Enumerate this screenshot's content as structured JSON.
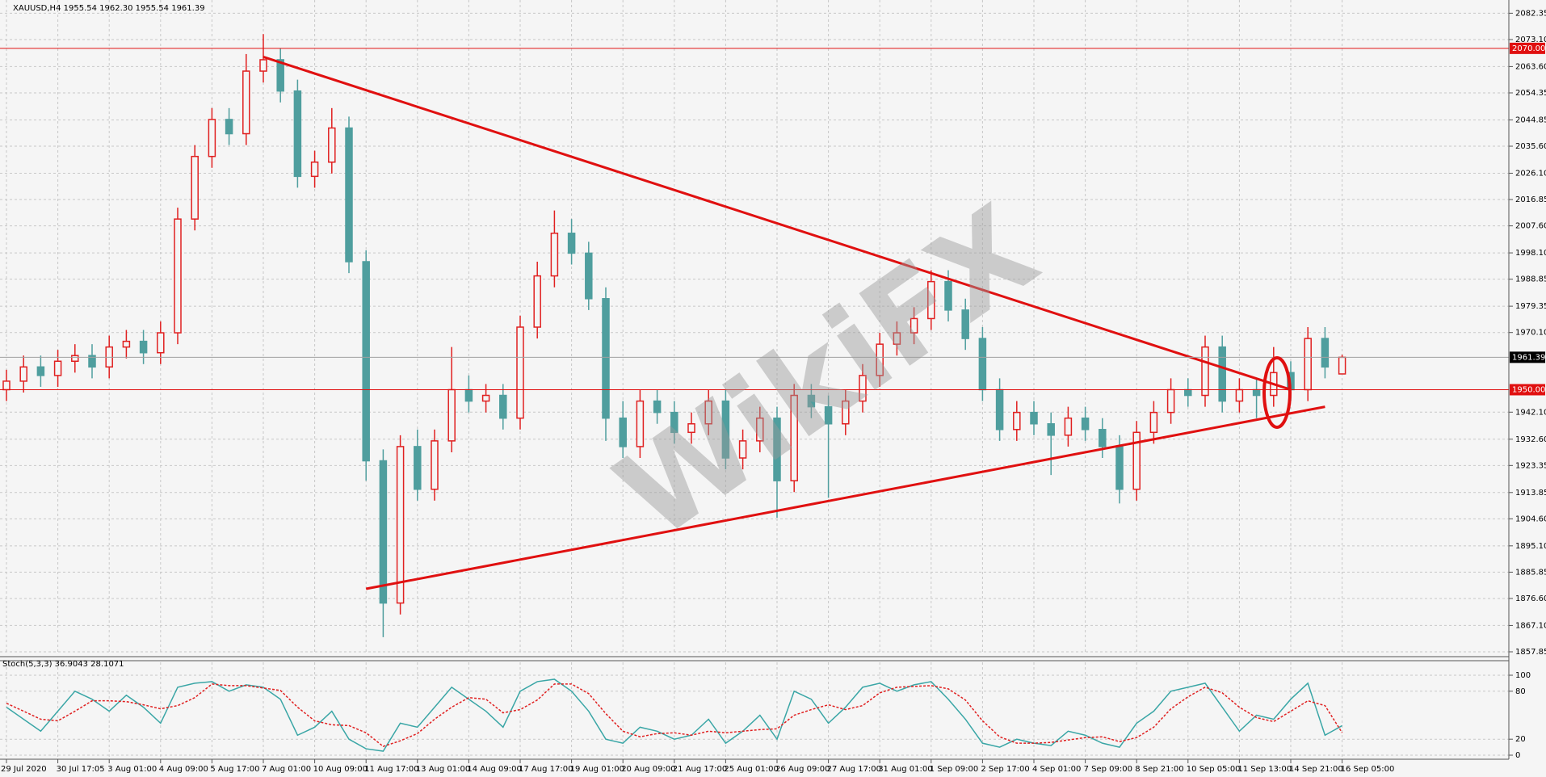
{
  "chart_data": [
    {
      "type": "candlestick",
      "title": "XAUUSD,H4  1955.54 1962.30 1955.54 1961.39",
      "watermark": "WikiFX",
      "categories": [
        "29 Jul 2020",
        null,
        null,
        "30 Jul 17:05",
        null,
        null,
        "3 Aug 01:00",
        null,
        null,
        "4 Aug 09:00",
        null,
        null,
        "5 Aug 17:00",
        null,
        null,
        "7 Aug 01:00",
        null,
        null,
        "10 Aug 09:00",
        null,
        null,
        "11 Aug 17:00",
        null,
        null,
        "13 Aug 01:00",
        null,
        null,
        "14 Aug 09:00",
        null,
        null,
        "17 Aug 17:00",
        null,
        null,
        "19 Aug 01:00",
        null,
        null,
        "20 Aug 09:00",
        null,
        null,
        "21 Aug 17:00",
        null,
        null,
        "25 Aug 01:00",
        null,
        null,
        "26 Aug 09:00",
        null,
        null,
        "27 Aug 17:00",
        null,
        null,
        "31 Aug 01:00",
        null,
        null,
        "1 Sep 09:00",
        null,
        null,
        "2 Sep 17:00",
        null,
        null,
        "4 Sep 01:00",
        null,
        null,
        "7 Sep 09:00",
        null,
        null,
        "8 Sep 21:00",
        null,
        null,
        "10 Sep 05:00",
        null,
        null,
        "11 Sep 13:00",
        null,
        null,
        "14 Sep 21:00",
        null,
        null,
        "16 Sep 05:00"
      ],
      "open": [
        1950,
        1953,
        1958,
        1955,
        1960,
        1962,
        1958,
        1965,
        1967,
        1963,
        1970,
        2010,
        2032,
        2045,
        2040,
        2062,
        2066,
        2055,
        2025,
        2030,
        2042,
        1995,
        1925,
        1875,
        1930,
        1915,
        1932,
        1950,
        1946,
        1948,
        1940,
        1972,
        1990,
        2005,
        1998,
        1982,
        1940,
        1930,
        1946,
        1942,
        1935,
        1938,
        1946,
        1926,
        1932,
        1940,
        1918,
        1948,
        1944,
        1938,
        1946,
        1955,
        1966,
        1970,
        1975,
        1988,
        1978,
        1968,
        1950,
        1936,
        1942,
        1938,
        1934,
        1940,
        1936,
        1930,
        1915,
        1935,
        1942,
        1950,
        1948,
        1965,
        1946,
        1950,
        1948,
        1956,
        1950,
        1968,
        1955.54
      ],
      "high": [
        1957,
        1962,
        1962,
        1964,
        1966,
        1966,
        1969,
        1971,
        1971,
        1974,
        2014,
        2036,
        2049,
        2049,
        2068,
        2075,
        2070,
        2059,
        2034,
        2049,
        2046,
        1999,
        1929,
        1934,
        1936,
        1936,
        1965,
        1955,
        1952,
        1952,
        1976,
        1995,
        2013,
        2010,
        2002,
        1986,
        1946,
        1950,
        1950,
        1946,
        1942,
        1950,
        1950,
        1936,
        1944,
        1944,
        1952,
        1952,
        1948,
        1950,
        1959,
        1970,
        1974,
        1979,
        1992,
        1992,
        1982,
        1972,
        1954,
        1946,
        1946,
        1942,
        1944,
        1944,
        1940,
        1934,
        1939,
        1946,
        1954,
        1954,
        1969,
        1969,
        1954,
        1954,
        1965,
        1960,
        1972,
        1972,
        1962.3
      ],
      "low": [
        1946,
        1949,
        1951,
        1951,
        1956,
        1954,
        1954,
        1961,
        1959,
        1959,
        1966,
        2006,
        2028,
        2036,
        2036,
        2058,
        2051,
        2021,
        2021,
        2026,
        1991,
        1918,
        1863,
        1871,
        1911,
        1911,
        1928,
        1942,
        1942,
        1936,
        1936,
        1968,
        1986,
        1994,
        1978,
        1932,
        1926,
        1926,
        1938,
        1931,
        1931,
        1934,
        1922,
        1922,
        1928,
        1905,
        1914,
        1940,
        1912,
        1934,
        1942,
        1951,
        1962,
        1966,
        1971,
        1974,
        1964,
        1946,
        1932,
        1932,
        1934,
        1920,
        1930,
        1932,
        1926,
        1910,
        1911,
        1931,
        1938,
        1944,
        1944,
        1942,
        1942,
        1940,
        1944,
        1946,
        1946,
        1954,
        1955.54
      ],
      "close": [
        1953,
        1958,
        1955,
        1960,
        1962,
        1958,
        1965,
        1967,
        1963,
        1970,
        2010,
        2032,
        2045,
        2040,
        2062,
        2066,
        2055,
        2025,
        2030,
        2042,
        1995,
        1925,
        1875,
        1930,
        1915,
        1932,
        1950,
        1946,
        1948,
        1940,
        1972,
        1990,
        2005,
        1998,
        1982,
        1940,
        1930,
        1946,
        1942,
        1935,
        1938,
        1946,
        1926,
        1932,
        1940,
        1918,
        1948,
        1944,
        1938,
        1946,
        1955,
        1966,
        1970,
        1975,
        1988,
        1978,
        1968,
        1950,
        1936,
        1942,
        1938,
        1934,
        1940,
        1936,
        1930,
        1915,
        1935,
        1942,
        1950,
        1948,
        1965,
        1946,
        1950,
        1948,
        1956,
        1950,
        1968,
        1958,
        1961.39
      ],
      "up_color": "#e02020",
      "down_color": "#4f9e9e",
      "ylim": [
        1857,
        2087
      ],
      "yticks": [
        2082.35,
        {
          "value": 2073.1,
          "label": "2073.10"
        },
        {
          "value": 2063.6,
          "label": "2063.60"
        },
        2054.35,
        2044.85,
        {
          "value": 2035.6,
          "label": "2035.60"
        },
        {
          "value": 2026.1,
          "label": "2026.10"
        },
        2016.85,
        {
          "value": 2007.6,
          "label": "2007.60"
        },
        {
          "value": 1998.1,
          "label": "1998.10"
        },
        1988.85,
        1979.35,
        {
          "value": 1970.1,
          "label": "1970.10"
        },
        {
          "value": 1942.1,
          "label": "1942.10"
        },
        {
          "value": 1932.6,
          "label": "1932.60"
        },
        1923.35,
        1913.85,
        {
          "value": 1904.6,
          "label": "1904.60"
        },
        {
          "value": 1895.1,
          "label": "1895.10"
        },
        1885.85,
        {
          "value": 1876.6,
          "label": "1876.60"
        },
        {
          "value": 1867.1,
          "label": "1867.10"
        },
        1857.85
      ],
      "hlines": [
        {
          "value": 2070,
          "label": "2070.00"
        },
        {
          "value": 1950,
          "label": "1950.00"
        }
      ],
      "last_price": 1961.39,
      "trendlines": [
        {
          "from": [
            15,
            2067
          ],
          "to": [
            75,
            1950
          ]
        },
        {
          "from": [
            21,
            1880
          ],
          "to": [
            77,
            1944
          ]
        }
      ],
      "trend_color": "#e01010",
      "grid": true
    },
    {
      "type": "line",
      "title": "Stoch(5,3,3) 36.9043 28.1071",
      "series": [
        {
          "color": "#3aa6a6",
          "style": "solid",
          "values": [
            60,
            45,
            30,
            55,
            80,
            70,
            55,
            75,
            60,
            40,
            85,
            90,
            92,
            80,
            88,
            85,
            70,
            25,
            35,
            55,
            20,
            8,
            5,
            40,
            35,
            60,
            85,
            70,
            55,
            35,
            80,
            92,
            95,
            80,
            55,
            20,
            15,
            35,
            30,
            20,
            25,
            45,
            15,
            30,
            50,
            20,
            80,
            70,
            40,
            60,
            85,
            90,
            80,
            88,
            92,
            70,
            45,
            15,
            10,
            20,
            15,
            12,
            30,
            25,
            15,
            10,
            40,
            55,
            80,
            85,
            90,
            60,
            30,
            50,
            45,
            70,
            90,
            25,
            36.9043
          ]
        },
        {
          "color": "#e02020",
          "style": "dashed",
          "values": [
            65,
            55,
            45,
            43,
            55,
            68,
            68,
            67,
            63,
            58,
            62,
            72,
            89,
            87,
            87,
            84,
            81,
            60,
            43,
            38,
            37,
            28,
            11,
            18,
            27,
            45,
            60,
            72,
            70,
            53,
            57,
            69,
            89,
            89,
            77,
            52,
            30,
            23,
            27,
            28,
            25,
            30,
            28,
            30,
            32,
            33,
            50,
            57,
            63,
            57,
            62,
            78,
            85,
            86,
            87,
            83,
            69,
            43,
            23,
            15,
            15,
            16,
            19,
            22,
            23,
            17,
            22,
            35,
            58,
            73,
            85,
            78,
            60,
            47,
            42,
            55,
            68,
            62,
            28.1071
          ]
        }
      ],
      "ylim": [
        0,
        100
      ],
      "yticks": [
        0,
        20,
        80,
        100
      ],
      "grid": true
    }
  ]
}
